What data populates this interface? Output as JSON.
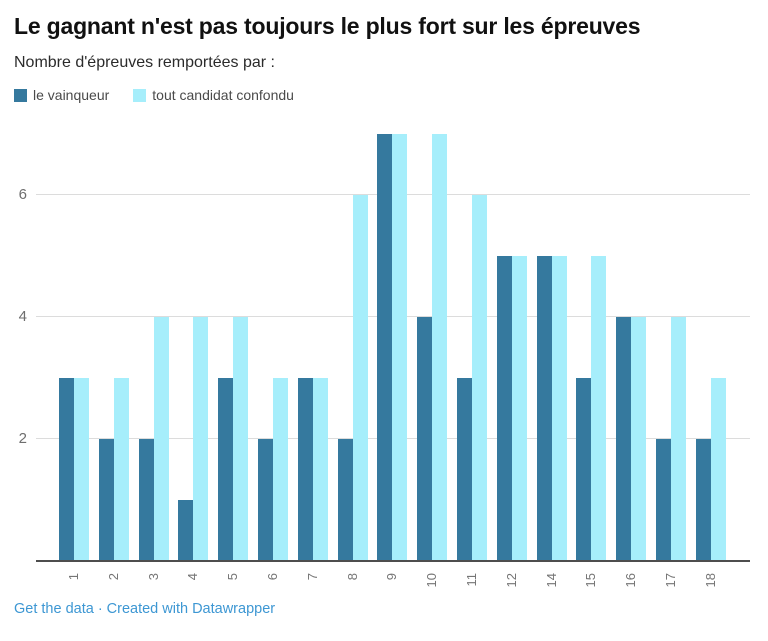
{
  "header": {
    "title": "Le gagnant n'est pas toujours le plus fort sur les épreuves",
    "subtitle": "Nombre d'épreuves remportées par :"
  },
  "legend": {
    "items": [
      {
        "label": "le vainqueur",
        "color": "#35799e"
      },
      {
        "label": "tout candidat confondu",
        "color": "#a6eefb"
      }
    ]
  },
  "footer": {
    "get_data_label": "Get the data",
    "separator": "·",
    "credit_label": "Created with Datawrapper",
    "link_color": "#3d97d3"
  },
  "colors": {
    "grid": "#dcdcdc",
    "axis_line": "#4d4d4d",
    "tick_text": "#757575"
  },
  "chart_data": {
    "type": "bar",
    "title": "Le gagnant n'est pas toujours le plus fort sur les épreuves",
    "subtitle": "Nombre d'épreuves remportées par :",
    "xlabel": "",
    "ylabel": "",
    "categories": [
      "1",
      "2",
      "3",
      "4",
      "5",
      "6",
      "7",
      "8",
      "9",
      "10",
      "11",
      "12",
      "14",
      "15",
      "16",
      "17",
      "18"
    ],
    "series": [
      {
        "name": "le vainqueur",
        "color": "#35799e",
        "values": [
          3,
          2,
          2,
          1,
          3,
          2,
          3,
          2,
          7,
          4,
          3,
          5,
          5,
          3,
          4,
          2,
          2
        ]
      },
      {
        "name": "tout candidat confondu",
        "color": "#a6eefb",
        "values": [
          3,
          3,
          4,
          4,
          4,
          3,
          3,
          6,
          7,
          7,
          6,
          5,
          5,
          5,
          4,
          4,
          3
        ]
      }
    ],
    "ylim": [
      0,
      7
    ],
    "yticks": [
      2,
      4,
      6
    ],
    "grid": true,
    "legend_position": "top"
  }
}
